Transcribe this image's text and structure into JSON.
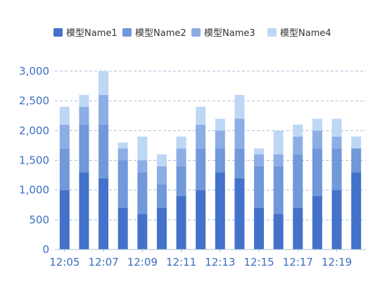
{
  "chart_data": {
    "type": "bar",
    "stacked": true,
    "categories": [
      "12:05",
      "12:06",
      "12:07",
      "12:08",
      "12:09",
      "12:10",
      "12:11",
      "12:12",
      "12:13",
      "12:14",
      "12:15",
      "12:16",
      "12:17",
      "12:18",
      "12:19",
      "12:20"
    ],
    "series": [
      {
        "name": "模型Name1",
        "color": "#4472CA",
        "values": [
          1000,
          1300,
          1200,
          700,
          600,
          700,
          900,
          1000,
          1300,
          1200,
          700,
          600,
          700,
          900,
          1000,
          1300
        ]
      },
      {
        "name": "模型Name2",
        "color": "#7098DA",
        "values": [
          700,
          800,
          900,
          800,
          700,
          400,
          500,
          700,
          400,
          500,
          700,
          800,
          900,
          800,
          700,
          400
        ]
      },
      {
        "name": "模型Name3",
        "color": "#8CADE6",
        "values": [
          400,
          300,
          500,
          200,
          200,
          300,
          300,
          400,
          300,
          500,
          200,
          200,
          300,
          300,
          200,
          0
        ]
      },
      {
        "name": "模型Name4",
        "color": "#BDD7F5",
        "values": [
          300,
          200,
          400,
          100,
          400,
          200,
          200,
          300,
          200,
          400,
          100,
          400,
          200,
          200,
          300,
          200
        ]
      }
    ],
    "x_tick_labels": [
      "12:05",
      "12:07",
      "12:09",
      "12:11",
      "12:13",
      "12:15",
      "12:17",
      "12:19"
    ],
    "y_ticks": [
      0,
      500,
      1000,
      1500,
      2000,
      2500,
      3000
    ],
    "y_tick_labels": [
      "0",
      "500",
      "1,000",
      "1,500",
      "2,000",
      "2,500",
      "3,000"
    ],
    "ylim": [
      0,
      3000
    ],
    "grid": true,
    "legend_position": "top-center",
    "axis_label_color": "#3A6FC2",
    "grid_color": "#A9BFD9"
  }
}
